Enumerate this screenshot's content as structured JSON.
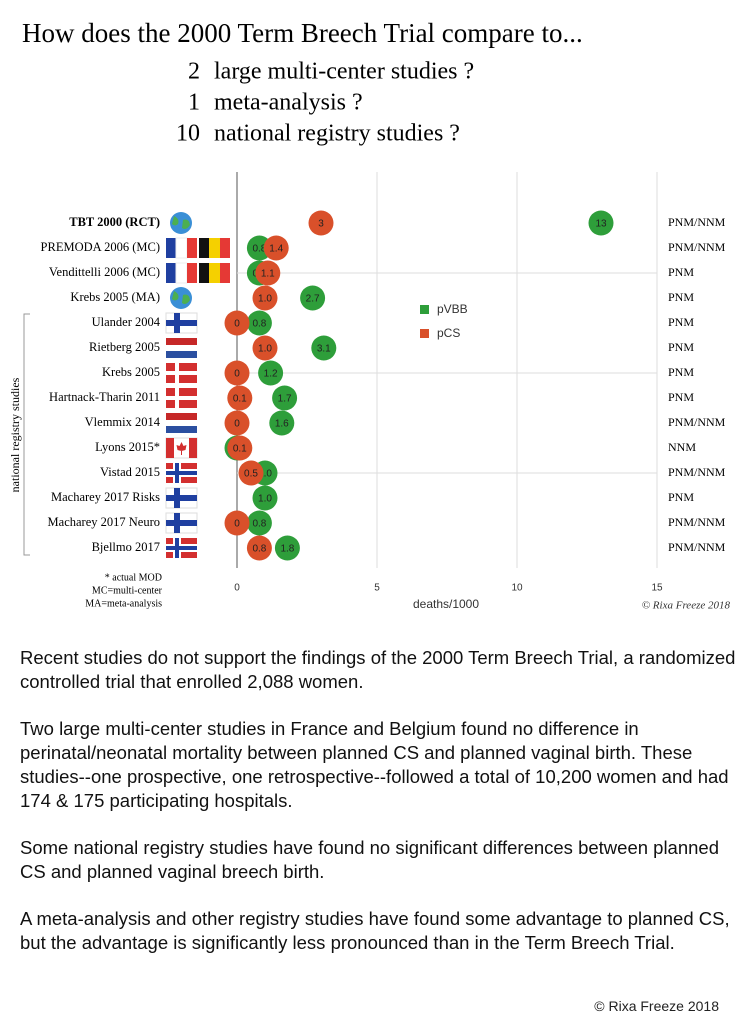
{
  "header": {
    "title": "How does the 2000 Term Breech Trial compare to...",
    "items": [
      {
        "count": "2",
        "text": "large multi-center studies ?"
      },
      {
        "count": "1",
        "text": "meta-analysis ?"
      },
      {
        "count": "10",
        "text": "national registry studies ?"
      }
    ]
  },
  "chart_data": {
    "type": "dot",
    "categories": [
      "TBT 2000 (RCT)",
      "PREMODA 2006 (MC)",
      "Vendittelli 2006 (MC)",
      "Krebs 2005 (MA)",
      "Ulander 2004",
      "Rietberg 2005",
      "Krebs 2005",
      "Hartnack-Tharin 2011",
      "Vlemmix 2014",
      "Lyons 2015*",
      "Vistad 2015",
      "Macharey 2017 Risks",
      "Macharey 2017 Neuro",
      "Bjellmo 2017"
    ],
    "outcomes": [
      "PNM/NNM",
      "PNM/NNM",
      "PNM",
      "PNM",
      "PNM",
      "PNM",
      "PNM",
      "PNM",
      "PNM/NNM",
      "NNM",
      "PNM/NNM",
      "PNM",
      "PNM/NNM",
      "PNM/NNM"
    ],
    "series": [
      {
        "name": "pVBB",
        "color": "#2e9e3a",
        "values": [
          13,
          0.8,
          0.8,
          2.7,
          0.8,
          3.1,
          1.2,
          1.7,
          1.6,
          0,
          1,
          1,
          0.8,
          1.8
        ],
        "value_labels": [
          "13",
          "0.8",
          "0.8",
          "2.7",
          "0.8",
          "3.1",
          "1.2",
          "1.7",
          "1.6",
          "0",
          "1.0",
          "1.0",
          "0.8",
          "1.8"
        ]
      },
      {
        "name": "pCS",
        "color": "#d9502a",
        "values": [
          3,
          1.4,
          1.1,
          1,
          0,
          1,
          0,
          0.1,
          0,
          0.1,
          0.5,
          null,
          0,
          0.8
        ],
        "value_labels": [
          "3",
          "1.4",
          "1.1",
          "1.0",
          "0",
          "1.0",
          "0",
          "0.1",
          "0",
          "0.1",
          "0.5",
          null,
          "0",
          "0.8"
        ]
      }
    ],
    "xlim": [
      0,
      15
    ],
    "xticks": [
      0,
      5,
      10,
      15
    ],
    "xlabel": "deaths/1000",
    "grid": true,
    "group_label": "national registry studies",
    "notes": [
      "* actual MOD",
      "MC=multi-center",
      "MA=meta-analysis"
    ],
    "credit": "© Rixa Freeze 2018"
  },
  "paragraphs": [
    "Recent studies do not support the findings of the 2000 Term Breech Trial, a randomized controlled trial that enrolled 2,088 women.",
    "Two large multi-center studies in France and Belgium found no difference in perinatal/neonatal mortality between planned CS and planned vaginal birth. These studies--one prospective, one retrospective--followed a total of 10,200 women and had 174 & 175 participating hospitals.",
    "Some national registry studies have found no significant differences between planned CS and planned vaginal breech birth.",
    "A meta-analysis and other registry studies have found some advantage to planned CS, but the advantage is significantly less pronounced than in the Term Breech Trial."
  ],
  "footer": "©  Rixa Freeze 2018"
}
